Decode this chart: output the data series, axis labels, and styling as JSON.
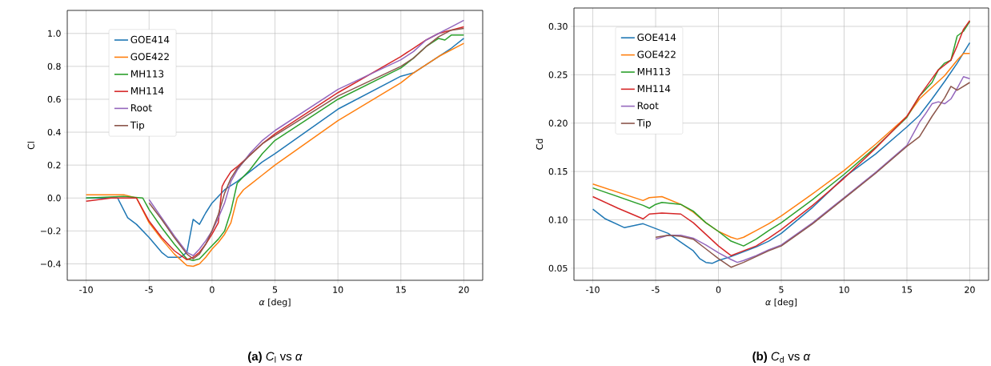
{
  "chart_data": [
    {
      "type": "line",
      "xlabel": "*α* [deg]",
      "ylabel": "Cl",
      "xlim": [
        -11.5,
        21.5
      ],
      "ylim": [
        -0.5,
        1.14
      ],
      "xticks": [
        -10,
        -5,
        0,
        5,
        10,
        15,
        20
      ],
      "yticks": [
        {
          "value": -0.4,
          "label": "−0.4"
        },
        {
          "value": -0.2,
          "label": "−0.2"
        },
        {
          "value": 0,
          "label": "0.0"
        },
        0.2,
        0.4,
        0.6,
        0.8,
        {
          "value": 1,
          "label": "1.0"
        }
      ],
      "grid": true,
      "legend": "top left",
      "annotations": [
        "**(a)** *C*$_{l}$ vs *α*"
      ],
      "series": [
        {
          "name": "GOE414",
          "color": "#1f77b4",
          "x": [
            -10,
            -7.5,
            -6.7,
            -6,
            -5,
            -4,
            -3.5,
            -3,
            -2.5,
            -2,
            -1.5,
            -1,
            -0.5,
            0,
            0.5,
            1,
            2,
            3,
            4,
            5,
            10,
            15,
            16,
            17,
            18,
            19,
            20
          ],
          "values": [
            0.0,
            0.0,
            -0.12,
            -0.16,
            -0.24,
            -0.33,
            -0.36,
            -0.36,
            -0.36,
            -0.33,
            -0.13,
            -0.16,
            -0.09,
            -0.03,
            0.01,
            0.05,
            0.1,
            0.16,
            0.22,
            0.27,
            0.54,
            0.74,
            0.76,
            0.81,
            0.86,
            0.91,
            0.97
          ]
        },
        {
          "name": "GOE422",
          "color": "#ff7f0e",
          "x": [
            -10,
            -7,
            -6,
            -5,
            -4,
            -3,
            -2,
            -1.5,
            -1,
            -0.5,
            0,
            0.5,
            1,
            1.5,
            2,
            2.5,
            3,
            4,
            5,
            10,
            15,
            16,
            17,
            18,
            19,
            20
          ],
          "values": [
            0.02,
            0.02,
            0.0,
            -0.15,
            -0.25,
            -0.34,
            -0.41,
            -0.415,
            -0.4,
            -0.36,
            -0.31,
            -0.27,
            -0.22,
            -0.15,
            0.0,
            0.05,
            0.08,
            0.14,
            0.2,
            0.47,
            0.7,
            0.76,
            0.81,
            0.86,
            0.9,
            0.94
          ]
        },
        {
          "name": "MH113",
          "color": "#2ca02c",
          "x": [
            -10,
            -7,
            -5.5,
            -5,
            -4,
            -3,
            -2,
            -1.5,
            -1,
            -0.5,
            0,
            0.5,
            1,
            1.5,
            2,
            3,
            4,
            5,
            10,
            15,
            16,
            17,
            18,
            18.5,
            19,
            20
          ],
          "values": [
            0.0,
            0.01,
            0.0,
            -0.07,
            -0.18,
            -0.28,
            -0.37,
            -0.38,
            -0.37,
            -0.33,
            -0.29,
            -0.25,
            -0.2,
            -0.08,
            0.09,
            0.17,
            0.27,
            0.35,
            0.6,
            0.79,
            0.85,
            0.92,
            0.97,
            0.96,
            0.99,
            0.99
          ]
        },
        {
          "name": "MH114",
          "color": "#d62728",
          "x": [
            -10,
            -8,
            -6,
            -5,
            -4,
            -3,
            -2,
            -1.5,
            -1,
            -0.5,
            0,
            0.5,
            0.8,
            1,
            1.5,
            2,
            3,
            4,
            5,
            10,
            15,
            16,
            17,
            18,
            19,
            20
          ],
          "values": [
            -0.02,
            0.0,
            0.0,
            -0.14,
            -0.24,
            -0.32,
            -0.375,
            -0.36,
            -0.33,
            -0.28,
            -0.22,
            -0.15,
            0.07,
            0.1,
            0.16,
            0.19,
            0.26,
            0.33,
            0.39,
            0.64,
            0.86,
            0.91,
            0.96,
            1.0,
            1.02,
            1.04
          ]
        },
        {
          "name": "Root",
          "color": "#9467bd",
          "x": [
            -5,
            -4,
            -3,
            -2,
            -1.5,
            -1,
            -0.5,
            0,
            0.5,
            1,
            1.5,
            2,
            3,
            4,
            5,
            10,
            15,
            16,
            17,
            18,
            19,
            20
          ],
          "values": [
            -0.01,
            -0.12,
            -0.23,
            -0.33,
            -0.35,
            -0.31,
            -0.26,
            -0.2,
            -0.12,
            -0.03,
            0.1,
            0.17,
            0.27,
            0.35,
            0.41,
            0.66,
            0.84,
            0.89,
            0.96,
            1.0,
            1.04,
            1.08
          ]
        },
        {
          "name": "Tip",
          "color": "#8c564b",
          "x": [
            -5,
            -4,
            -3,
            -2,
            -1.5,
            -1,
            -0.5,
            0,
            0.5,
            1,
            1.5,
            2,
            3,
            4,
            5,
            10,
            15,
            16,
            17,
            18,
            19,
            20
          ],
          "values": [
            -0.03,
            -0.13,
            -0.24,
            -0.34,
            -0.37,
            -0.34,
            -0.28,
            -0.2,
            -0.1,
            0.03,
            0.12,
            0.18,
            0.26,
            0.33,
            0.38,
            0.62,
            0.8,
            0.85,
            0.92,
            0.98,
            1.02,
            1.03
          ]
        }
      ]
    },
    {
      "type": "line",
      "xlabel": "*α* [deg]",
      "ylabel": "Cd",
      "xlim": [
        -11.5,
        21.5
      ],
      "ylim": [
        0.0375,
        0.319
      ],
      "xticks": [
        -10,
        -5,
        0,
        5,
        10,
        15,
        20
      ],
      "yticks": [
        0.05,
        {
          "value": 0.1,
          "label": "0.10"
        },
        0.15,
        {
          "value": 0.2,
          "label": "0.20"
        },
        0.25,
        {
          "value": 0.3,
          "label": "0.30"
        }
      ],
      "grid": true,
      "legend": "top left",
      "annotations": [
        "**(b)** *C*$_{d}$ vs *α*"
      ],
      "series": [
        {
          "name": "GOE414",
          "color": "#1f77b4",
          "x": [
            -10,
            -9,
            -7.5,
            -6,
            -5,
            -4,
            -3,
            -2,
            -1.5,
            -1,
            -0.5,
            0,
            1,
            2,
            3,
            4,
            5,
            7.5,
            10,
            12.5,
            15,
            16,
            17,
            18,
            19,
            20
          ],
          "values": [
            0.111,
            0.101,
            0.092,
            0.096,
            0.091,
            0.086,
            0.077,
            0.068,
            0.06,
            0.056,
            0.055,
            0.058,
            0.062,
            0.067,
            0.072,
            0.078,
            0.086,
            0.113,
            0.144,
            0.168,
            0.196,
            0.208,
            0.225,
            0.243,
            0.262,
            0.283
          ]
        },
        {
          "name": "GOE422",
          "color": "#ff7f0e",
          "x": [
            -10,
            -6,
            -5.5,
            -4.5,
            -3,
            -2,
            -1,
            0,
            1,
            1.5,
            2,
            3,
            4,
            5,
            7.5,
            10,
            12.5,
            15,
            16,
            17,
            18,
            19,
            19.5,
            20
          ],
          "values": [
            0.137,
            0.12,
            0.123,
            0.124,
            0.116,
            0.108,
            0.097,
            0.088,
            0.082,
            0.08,
            0.082,
            0.089,
            0.096,
            0.104,
            0.127,
            0.151,
            0.178,
            0.207,
            0.225,
            0.237,
            0.249,
            0.265,
            0.272,
            0.272
          ]
        },
        {
          "name": "MH113",
          "color": "#2ca02c",
          "x": [
            -10,
            -6,
            -5.5,
            -5,
            -4.5,
            -3,
            -2,
            -1,
            0,
            1,
            2,
            3,
            4,
            5,
            7.5,
            10,
            12.5,
            15,
            16,
            17,
            17.5,
            18,
            18.5,
            19,
            19.5,
            20
          ],
          "values": [
            0.133,
            0.115,
            0.112,
            0.116,
            0.118,
            0.116,
            0.109,
            0.097,
            0.088,
            0.078,
            0.073,
            0.08,
            0.089,
            0.097,
            0.121,
            0.147,
            0.175,
            0.206,
            0.228,
            0.242,
            0.255,
            0.262,
            0.265,
            0.29,
            0.295,
            0.305
          ]
        },
        {
          "name": "MH114",
          "color": "#d62728",
          "x": [
            -10,
            -8,
            -6,
            -5.5,
            -4.5,
            -3,
            -2,
            -1,
            0,
            1,
            2,
            3,
            4,
            5,
            7.5,
            10,
            12.5,
            15,
            16,
            17,
            17.5,
            18,
            18.5,
            19,
            19.5,
            20
          ],
          "values": [
            0.124,
            0.112,
            0.101,
            0.106,
            0.107,
            0.106,
            0.097,
            0.085,
            0.073,
            0.063,
            0.068,
            0.073,
            0.081,
            0.09,
            0.115,
            0.143,
            0.174,
            0.207,
            0.228,
            0.246,
            0.255,
            0.26,
            0.265,
            0.28,
            0.297,
            0.306
          ]
        },
        {
          "name": "Root",
          "color": "#9467bd",
          "x": [
            -5,
            -4,
            -3,
            -2,
            -1,
            0,
            1,
            1.5,
            2,
            3,
            4,
            5,
            7.5,
            10,
            12.5,
            15,
            16,
            16.5,
            17,
            17.5,
            18,
            18.5,
            19,
            19.5,
            20
          ],
          "values": [
            0.08,
            0.084,
            0.084,
            0.081,
            0.074,
            0.066,
            0.059,
            0.056,
            0.058,
            0.063,
            0.069,
            0.074,
            0.097,
            0.123,
            0.149,
            0.177,
            0.201,
            0.21,
            0.22,
            0.222,
            0.22,
            0.225,
            0.236,
            0.248,
            0.246
          ]
        },
        {
          "name": "Tip",
          "color": "#8c564b",
          "x": [
            -5,
            -4,
            -3,
            -2,
            -1,
            0,
            1,
            2,
            3,
            4,
            5,
            7.5,
            10,
            12.5,
            15,
            16,
            17,
            18,
            18.5,
            19,
            19.5,
            20
          ],
          "values": [
            0.082,
            0.084,
            0.083,
            0.08,
            0.07,
            0.06,
            0.051,
            0.056,
            0.062,
            0.068,
            0.073,
            0.096,
            0.122,
            0.148,
            0.176,
            0.186,
            0.207,
            0.226,
            0.238,
            0.234,
            0.238,
            0.242
          ]
        }
      ]
    }
  ]
}
